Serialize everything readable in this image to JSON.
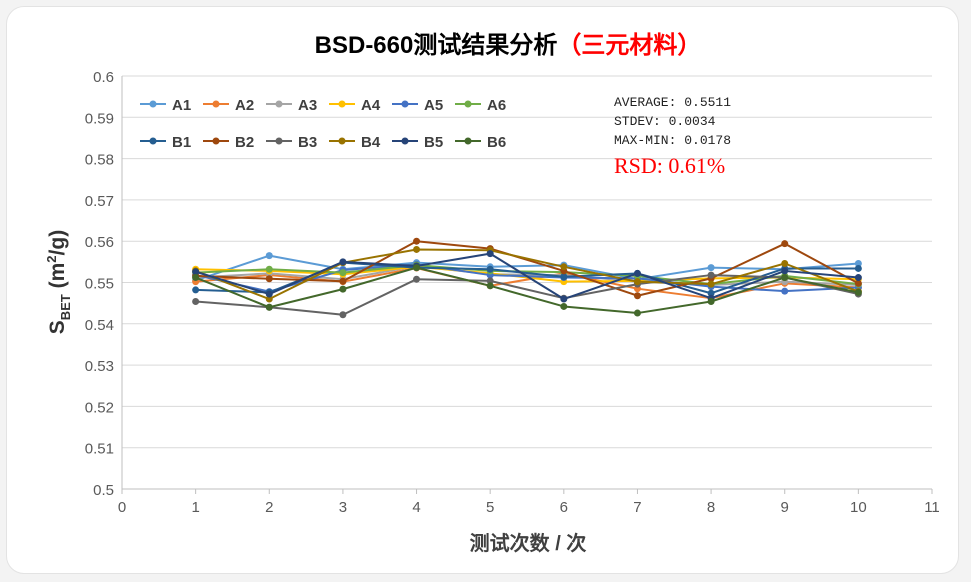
{
  "chart_data": {
    "type": "line",
    "title_main": "BSD-660测试结果分析",
    "title_paren": "（三元材料）",
    "title_colors": {
      "main": "#000000",
      "paren": "#ff0000"
    },
    "xlabel": "测试次数 / 次",
    "ylabel_main": "S",
    "ylabel_sub": "BET",
    "ylabel_unit_pre": " (m",
    "ylabel_unit_sup": "2",
    "ylabel_unit_post": "/g)",
    "xlim": [
      0,
      11
    ],
    "ylim": [
      0.5,
      0.6
    ],
    "x_ticks": [
      "0",
      "1",
      "2",
      "3",
      "4",
      "5",
      "6",
      "7",
      "8",
      "9",
      "10",
      "11"
    ],
    "y_ticks": [
      "0.5",
      "0.51",
      "0.52",
      "0.53",
      "0.54",
      "0.55",
      "0.56",
      "0.57",
      "0.58",
      "0.59",
      "0.6"
    ],
    "grid": "horizontal",
    "legend_position": "top-left",
    "x": [
      1,
      2,
      3,
      4,
      5,
      6,
      7,
      8,
      9,
      10
    ],
    "series": [
      {
        "name": "A1",
        "color": "#5b9bd5",
        "values": [
          0.5505,
          0.5565,
          0.5532,
          0.5548,
          0.5538,
          0.5542,
          0.5508,
          0.5536,
          0.5532,
          0.5546
        ]
      },
      {
        "name": "A2",
        "color": "#ed7d31",
        "values": [
          0.5502,
          0.5518,
          0.5502,
          0.5535,
          0.5492,
          0.5522,
          0.5485,
          0.5462,
          0.5498,
          0.5488
        ]
      },
      {
        "name": "A3",
        "color": "#a5a5a5",
        "values": [
          0.5512,
          0.5522,
          0.5508,
          0.554,
          0.552,
          0.5518,
          0.5502,
          0.5494,
          0.5502,
          0.5494
        ]
      },
      {
        "name": "A4",
        "color": "#ffc000",
        "values": [
          0.5532,
          0.5528,
          0.552,
          0.5538,
          0.5522,
          0.5502,
          0.5504,
          0.551,
          0.5512,
          0.5508
        ]
      },
      {
        "name": "A5",
        "color": "#4472c4",
        "values": [
          0.5518,
          0.5478,
          0.553,
          0.5544,
          0.5518,
          0.5512,
          0.551,
          0.549,
          0.5479,
          0.5488
        ]
      },
      {
        "name": "A6",
        "color": "#70ad47",
        "values": [
          0.5524,
          0.5532,
          0.5524,
          0.5542,
          0.5528,
          0.5525,
          0.5516,
          0.5496,
          0.5516,
          0.5496
        ]
      },
      {
        "name": "B1",
        "color": "#255e91",
        "values": [
          0.5482,
          0.5476,
          0.5548,
          0.5536,
          0.5532,
          0.5514,
          0.5522,
          0.5474,
          0.5534,
          0.5534
        ]
      },
      {
        "name": "B2",
        "color": "#9e480e",
        "values": [
          0.5516,
          0.5509,
          0.5503,
          0.56,
          0.5582,
          0.5528,
          0.5468,
          0.551,
          0.5594,
          0.5498
        ]
      },
      {
        "name": "B3",
        "color": "#636363",
        "values": [
          0.5454,
          0.544,
          0.5422,
          0.5508,
          0.5504,
          0.5462,
          0.5496,
          0.5518,
          0.5512,
          0.5472
        ]
      },
      {
        "name": "B4",
        "color": "#997300",
        "values": [
          0.5528,
          0.546,
          0.5548,
          0.558,
          0.5578,
          0.5538,
          0.5502,
          0.5496,
          0.5546,
          0.5478
        ]
      },
      {
        "name": "B5",
        "color": "#264478",
        "values": [
          0.5526,
          0.5472,
          0.555,
          0.554,
          0.557,
          0.546,
          0.5522,
          0.5462,
          0.5528,
          0.5512
        ]
      },
      {
        "name": "B6",
        "color": "#43682b",
        "values": [
          0.5512,
          0.544,
          0.5484,
          0.5536,
          0.5492,
          0.5442,
          0.5426,
          0.5454,
          0.5512,
          0.5476
        ]
      }
    ],
    "annotations": {
      "average": "AVERAGE: 0.5511",
      "stdev": "STDEV: 0.0034",
      "maxmin": "MAX-MIN: 0.0178",
      "rsd": "RSD: 0.61%",
      "rsd_color": "#ff0000"
    }
  }
}
